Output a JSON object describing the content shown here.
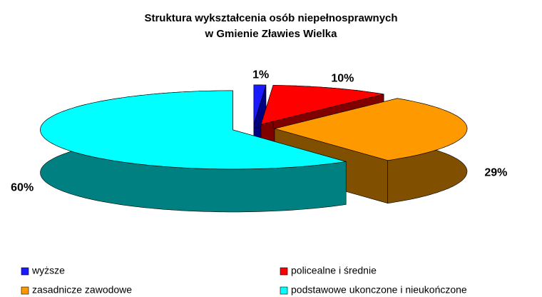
{
  "chart_data": {
    "type": "pie3d",
    "title": [
      "Struktura wykształcenia osób niepełnosprawnych",
      "w Gmienie Zławies Wielka"
    ],
    "categories": [
      "wyższe",
      "policealne i średnie",
      "zasadnicze zawodowe",
      "podstawowe ukonczone i nieukończone"
    ],
    "values": [
      1,
      10,
      29,
      60
    ],
    "value_labels": [
      "1%",
      "10%",
      "29%",
      "60%"
    ],
    "colors": [
      "#1a1aff",
      "#ff0000",
      "#ff9900",
      "#00ffff"
    ],
    "side_colors": [
      "#000080",
      "#800000",
      "#805000",
      "#008080"
    ]
  }
}
